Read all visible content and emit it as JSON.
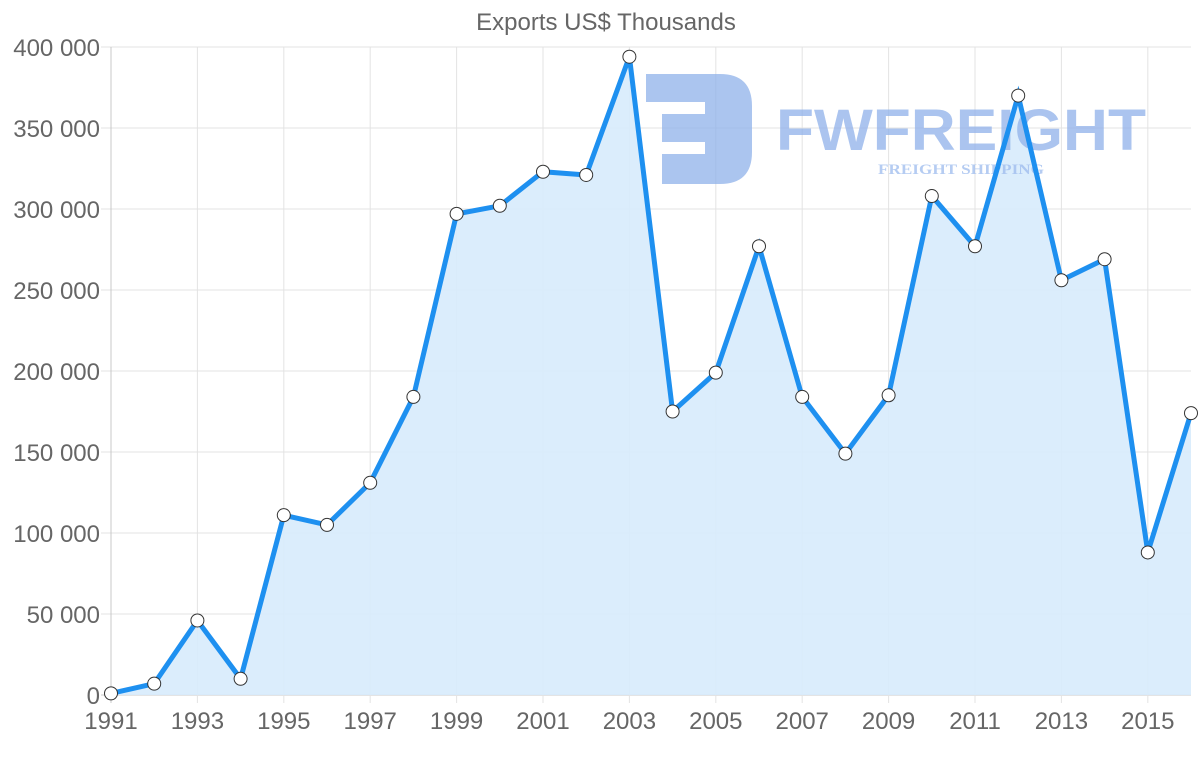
{
  "chart_data": {
    "type": "line",
    "title": "Exports US$ Thousands",
    "xlabel": "",
    "ylabel": "",
    "ylim": [
      0,
      400000
    ],
    "yticks": [
      "0",
      "50 000",
      "100 000",
      "150 000",
      "200 000",
      "250 000",
      "300 000",
      "350 000",
      "400 000"
    ],
    "xticks": [
      "1991",
      "1993",
      "1995",
      "1997",
      "1999",
      "2001",
      "2003",
      "2005",
      "2007",
      "2009",
      "2011",
      "2013",
      "2015"
    ],
    "grid": true,
    "legend": null,
    "fill": true,
    "x": [
      1991,
      1992,
      1993,
      1994,
      1995,
      1996,
      1997,
      1998,
      1999,
      2000,
      2001,
      2002,
      2003,
      2004,
      2005,
      2006,
      2007,
      2008,
      2009,
      2010,
      2011,
      2012,
      2013,
      2014,
      2015,
      2016
    ],
    "series": [
      {
        "name": "Exports US$ Thousands",
        "values": [
          1000,
          7000,
          46000,
          10000,
          111000,
          105000,
          131000,
          184000,
          297000,
          302000,
          323000,
          321000,
          394000,
          175000,
          199000,
          277000,
          184000,
          149000,
          185000,
          308000,
          277000,
          370000,
          256000,
          269000,
          88000,
          174000
        ]
      }
    ],
    "colors": {
      "line": "#1e90f0",
      "fill": "#d7ebfc",
      "grid": "#e3e3e3",
      "text": "#666666",
      "point_fill": "#ffffff",
      "point_stroke": "#333333"
    }
  },
  "watermark": {
    "logo_letter": "F",
    "brand": "FWFREIGHT",
    "tagline": "FREIGHT SHIPPING"
  }
}
